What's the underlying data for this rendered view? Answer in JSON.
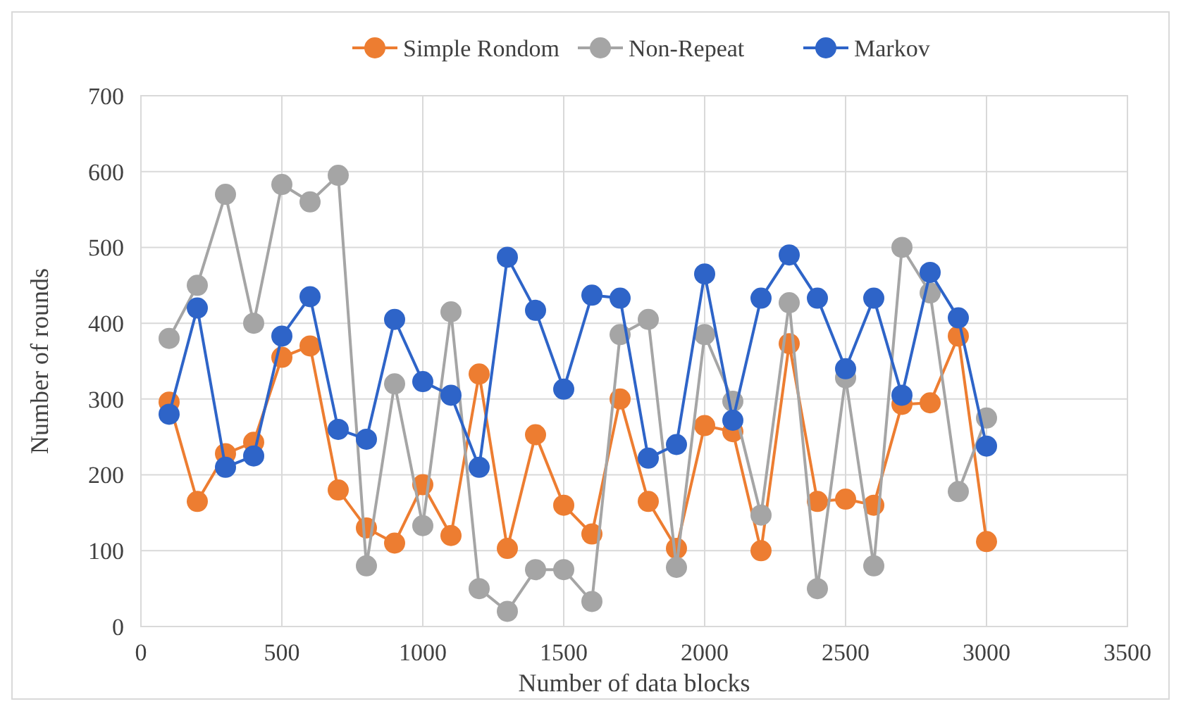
{
  "chart_data": {
    "type": "line",
    "xlabel": "Number of data blocks",
    "ylabel": "Number of rounds",
    "x": [
      100,
      200,
      300,
      400,
      500,
      600,
      700,
      800,
      900,
      1000,
      1100,
      1200,
      1300,
      1400,
      1500,
      1600,
      1700,
      1800,
      1900,
      2000,
      2100,
      2200,
      2300,
      2400,
      2500,
      2600,
      2700,
      2800,
      2900,
      3000
    ],
    "series": [
      {
        "name": "Simple Rondom",
        "color": "#ed7d31",
        "values": [
          296,
          165,
          228,
          243,
          355,
          370,
          180,
          130,
          110,
          187,
          120,
          333,
          103,
          253,
          160,
          122,
          300,
          165,
          103,
          265,
          257,
          100,
          373,
          165,
          168,
          160,
          293,
          295,
          383,
          112
        ]
      },
      {
        "name": "Non-Repeat",
        "color": "#a5a5a5",
        "values": [
          380,
          450,
          570,
          400,
          583,
          560,
          595,
          80,
          320,
          133,
          415,
          50,
          20,
          75,
          75,
          33,
          385,
          405,
          78,
          385,
          297,
          147,
          427,
          50,
          328,
          80,
          500,
          440,
          178,
          275
        ]
      },
      {
        "name": "Markov",
        "color": "#2e64c8",
        "values": [
          280,
          420,
          210,
          225,
          383,
          435,
          260,
          247,
          405,
          323,
          305,
          210,
          487,
          417,
          313,
          437,
          433,
          222,
          240,
          465,
          272,
          433,
          490,
          433,
          340,
          433,
          305,
          467,
          407,
          238
        ]
      }
    ],
    "xlim": [
      0,
      3500
    ],
    "xticks": [
      0,
      500,
      1000,
      1500,
      2000,
      2500,
      3000,
      3500
    ],
    "ylim": [
      0,
      700
    ],
    "yticks": [
      0,
      100,
      200,
      300,
      400,
      500,
      600,
      700
    ],
    "grid": true,
    "legend": "top",
    "marker": "circle",
    "line_style": "solid"
  }
}
